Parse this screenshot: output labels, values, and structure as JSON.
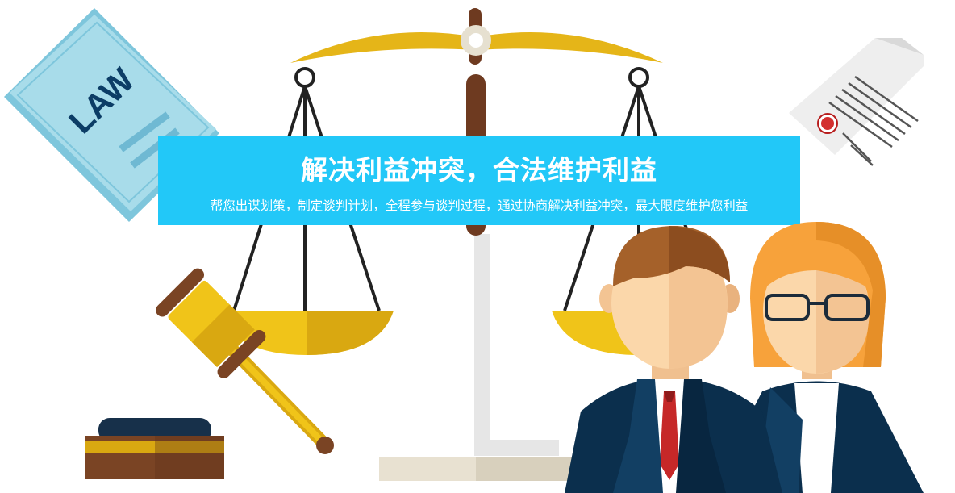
{
  "banner": {
    "title": "解决利益冲突，合法维护利益",
    "subtitle": "帮您出谋划策，制定谈判计划，全程参与谈判过程，通过协商解决利益冲突，最大限度维护您利益"
  },
  "book": {
    "cover_text": "LAW"
  },
  "colors": {
    "banner": "#22c8f8",
    "gold": "#f0c419",
    "brown": "#6e3a20",
    "navy": "#0b2f4d"
  }
}
